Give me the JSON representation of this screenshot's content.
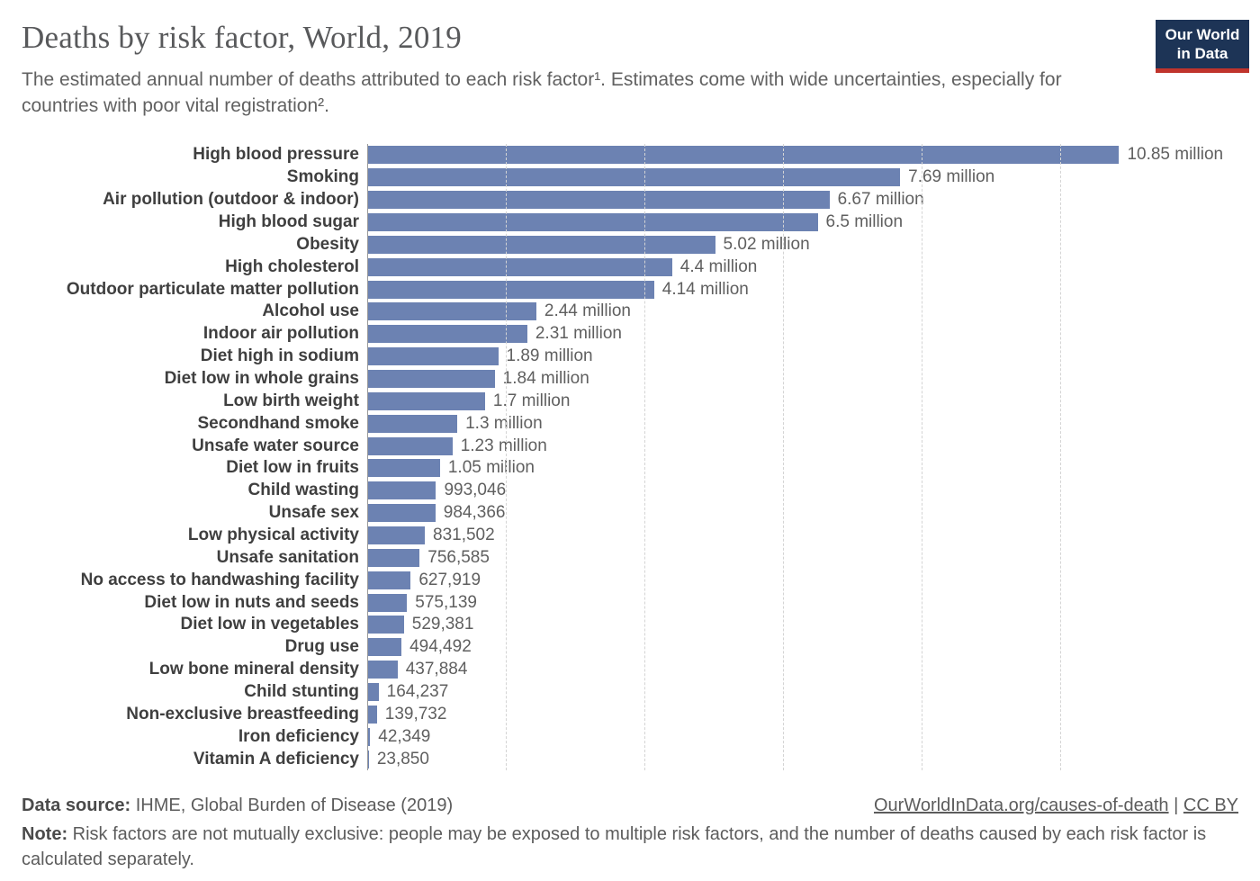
{
  "header": {
    "title": "Deaths by risk factor, World, 2019",
    "subtitle": "The estimated annual number of deaths attributed to each risk factor¹. Estimates come with wide uncertainties, especially for countries with poor vital registration².",
    "logo": {
      "line1": "Our World",
      "line2": "in Data"
    }
  },
  "chart_data": {
    "type": "bar",
    "orientation": "horizontal",
    "title": "Deaths by risk factor, World, 2019",
    "xlabel": "",
    "ylabel": "",
    "unit": "deaths",
    "xlim": [
      0,
      10000000
    ],
    "gridline_interval": 2000000,
    "grid": "vertical-dashed",
    "legend": "none",
    "bar_color": "#6c82b2",
    "categories": [
      "High blood pressure",
      "Smoking",
      "Air pollution (outdoor & indoor)",
      "High blood sugar",
      "Obesity",
      "High cholesterol",
      "Outdoor particulate matter pollution",
      "Alcohol use",
      "Indoor air pollution",
      "Diet high in sodium",
      "Diet low in whole grains",
      "Low birth weight",
      "Secondhand smoke",
      "Unsafe water source",
      "Diet low in fruits",
      "Child wasting",
      "Unsafe sex",
      "Low physical activity",
      "Unsafe sanitation",
      "No access to handwashing facility",
      "Diet low in nuts and seeds",
      "Diet low in vegetables",
      "Drug use",
      "Low bone mineral density",
      "Child stunting",
      "Non-exclusive breastfeeding",
      "Iron deficiency",
      "Vitamin A deficiency"
    ],
    "values": [
      10850000,
      7690000,
      6670000,
      6500000,
      5020000,
      4400000,
      4140000,
      2440000,
      2310000,
      1890000,
      1840000,
      1700000,
      1300000,
      1230000,
      1050000,
      993046,
      984366,
      831502,
      756585,
      627919,
      575139,
      529381,
      494492,
      437884,
      164237,
      139732,
      42349,
      23850
    ],
    "value_labels": [
      "10.85 million",
      "7.69 million",
      "6.67 million",
      "6.5 million",
      "5.02 million",
      "4.4 million",
      "4.14 million",
      "2.44 million",
      "2.31 million",
      "1.89 million",
      "1.84 million",
      "1.7 million",
      "1.3 million",
      "1.23 million",
      "1.05 million",
      "993,046",
      "984,366",
      "831,502",
      "756,585",
      "627,919",
      "575,139",
      "529,381",
      "494,492",
      "437,884",
      "164,237",
      "139,732",
      "42,349",
      "23,850"
    ]
  },
  "footer": {
    "data_source_label": "Data source:",
    "data_source": " IHME, Global Burden of Disease (2019)",
    "link": "OurWorldInData.org/causes-of-death",
    "separator": " | ",
    "license": "CC BY",
    "note_label": "Note:",
    "note": " Risk factors are not mutually exclusive: people may be exposed to multiple risk factors, and the number of deaths caused by each risk factor is calculated separately."
  },
  "colors": {
    "bar": "#6c82b2",
    "title_text": "#58595b",
    "body_text": "#5c5c5c",
    "category_label": "#3f3f3f",
    "value_label": "#5f5f5f",
    "gridline": "#d4d4d4",
    "axis_line": "#9b9b9b",
    "logo_background": "#1d3456",
    "logo_accent": "#c0342c",
    "logo_text": "#ffffff"
  }
}
